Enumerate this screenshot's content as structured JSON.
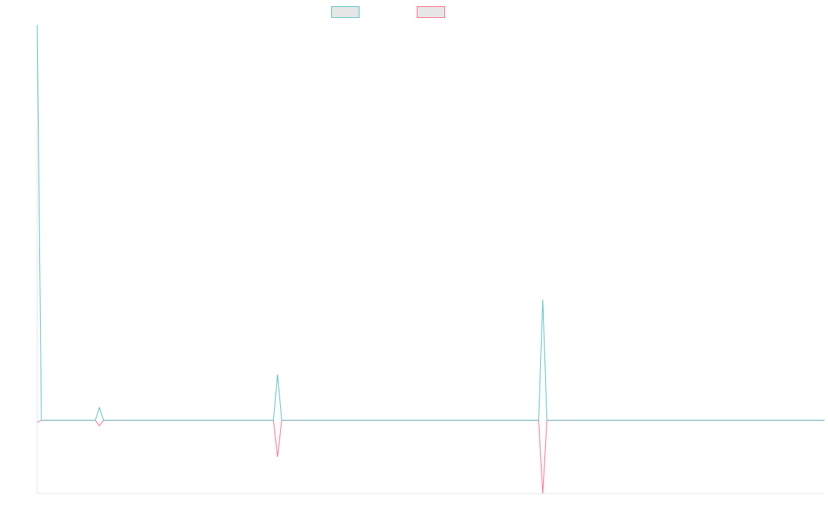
{
  "chart_data": {
    "type": "line",
    "title": "",
    "xlabel": "",
    "ylabel": "",
    "grid": false,
    "legend": {
      "placement": "top-center",
      "show_labels": false
    },
    "x": [
      0,
      1,
      2,
      3,
      4,
      5,
      6,
      7,
      8,
      9,
      10,
      11,
      12,
      13,
      14,
      15,
      16,
      17,
      18,
      19,
      20,
      21,
      22,
      23,
      24,
      25,
      26,
      27,
      28,
      29,
      30,
      31,
      32,
      33,
      34,
      35,
      36,
      37,
      38,
      39,
      40,
      41,
      42,
      43,
      44,
      45,
      46,
      47,
      48,
      49,
      50,
      51,
      52,
      53,
      54,
      55,
      56,
      57,
      58,
      59,
      60,
      61,
      62,
      63,
      64,
      65,
      66,
      67,
      68,
      69,
      70,
      71,
      72,
      73,
      74,
      75,
      76,
      77,
      78,
      79,
      80,
      81,
      82,
      83,
      84,
      85,
      86,
      87,
      88,
      89,
      90,
      91,
      92,
      93,
      94,
      95,
      96,
      97,
      98,
      99,
      100,
      101,
      102,
      103,
      104,
      105,
      106,
      107,
      108,
      109,
      110,
      111,
      112,
      113,
      114,
      115,
      116,
      117,
      118,
      119,
      120,
      121,
      122,
      123,
      124,
      125,
      126,
      127,
      128,
      129,
      130,
      131,
      132,
      133,
      134,
      135,
      136,
      137,
      138,
      139,
      140,
      141,
      142,
      143,
      144,
      145,
      146,
      147,
      148,
      149,
      150,
      151,
      152,
      153,
      154,
      155,
      156,
      157,
      158,
      159,
      160,
      161,
      162,
      163,
      164,
      165,
      166,
      167,
      168,
      169,
      170,
      171,
      172,
      173,
      174,
      175,
      176,
      177,
      178,
      179,
      180,
      181,
      182,
      183,
      184,
      185,
      186,
      187,
      188,
      189,
      190
    ],
    "ylim": [
      -20,
      108
    ],
    "series": [
      {
        "color": "#4bc0c0",
        "values": [
          108,
          0,
          0,
          0,
          0,
          0,
          0,
          0,
          0,
          0,
          0,
          0,
          0,
          0,
          0,
          3.5,
          0,
          0,
          0,
          0,
          0,
          0,
          0,
          0,
          0,
          0,
          0,
          0,
          0,
          0,
          0,
          0,
          0,
          0,
          0,
          0,
          0,
          0,
          0,
          0,
          0,
          0,
          0,
          0,
          0,
          0,
          0,
          0,
          0,
          0,
          0,
          0,
          0,
          0,
          0,
          0,
          0,
          0,
          12.5,
          0,
          0,
          0,
          0,
          0,
          0,
          0,
          0,
          0,
          0,
          0,
          0,
          0,
          0,
          0,
          0,
          0,
          0,
          0,
          0,
          0,
          0,
          0,
          0,
          0,
          0,
          0,
          0,
          0,
          0,
          0,
          0,
          0,
          0,
          0,
          0,
          0,
          0,
          0,
          0,
          0,
          0,
          0,
          0,
          0,
          0,
          0,
          0,
          0,
          0,
          0,
          0,
          0,
          0,
          0,
          0,
          0,
          0,
          0,
          0,
          0,
          0,
          0,
          33,
          0,
          0,
          0,
          0,
          0,
          0,
          0,
          0,
          0,
          0,
          0,
          0,
          0,
          0,
          0,
          0,
          0,
          0,
          0,
          0,
          0,
          0,
          0,
          0,
          0,
          0,
          0,
          0,
          0,
          0,
          0,
          0,
          0,
          0,
          0,
          0,
          0,
          0,
          0,
          0,
          0,
          0,
          0,
          0,
          0,
          0,
          0,
          0,
          0,
          0,
          0,
          0,
          0,
          0,
          0,
          0,
          0,
          0,
          0,
          0,
          0,
          0,
          0,
          0,
          0,
          0,
          0,
          0
        ]
      },
      {
        "color": "#ff6384",
        "values": [
          -0.5,
          0,
          0,
          0,
          0,
          0,
          0,
          0,
          0,
          0,
          0,
          0,
          0,
          0,
          0,
          -1.5,
          0,
          0,
          0,
          0,
          0,
          0,
          0,
          0,
          0,
          0,
          0,
          0,
          0,
          0,
          0,
          0,
          0,
          0,
          0,
          0,
          0,
          0,
          0,
          0,
          0,
          0,
          0,
          0,
          0,
          0,
          0,
          0,
          0,
          0,
          0,
          0,
          0,
          0,
          0,
          0,
          0,
          0,
          -10,
          0,
          0,
          0,
          0,
          0,
          0,
          0,
          0,
          0,
          0,
          0,
          0,
          0,
          0,
          0,
          0,
          0,
          0,
          0,
          0,
          0,
          0,
          0,
          0,
          0,
          0,
          0,
          0,
          0,
          0,
          0,
          0,
          0,
          0,
          0,
          0,
          0,
          0,
          0,
          0,
          0,
          0,
          0,
          0,
          0,
          0,
          0,
          0,
          0,
          0,
          0,
          0,
          0,
          0,
          0,
          0,
          0,
          0,
          0,
          0,
          0,
          0,
          0,
          -20,
          0,
          0,
          0,
          0,
          0,
          0,
          0,
          0,
          0,
          0,
          0,
          0,
          0,
          0,
          0,
          0,
          0,
          0,
          0,
          0,
          0,
          0,
          0,
          0,
          0,
          0,
          0,
          0,
          0,
          0,
          0,
          0,
          0,
          0,
          0,
          0,
          0,
          0,
          0,
          0,
          0,
          0,
          0,
          0,
          0,
          0,
          0,
          0,
          0,
          0,
          0,
          0,
          0,
          0,
          0,
          0,
          0,
          0,
          0,
          0,
          0,
          0,
          0,
          0,
          0,
          0,
          0,
          0
        ]
      }
    ]
  }
}
